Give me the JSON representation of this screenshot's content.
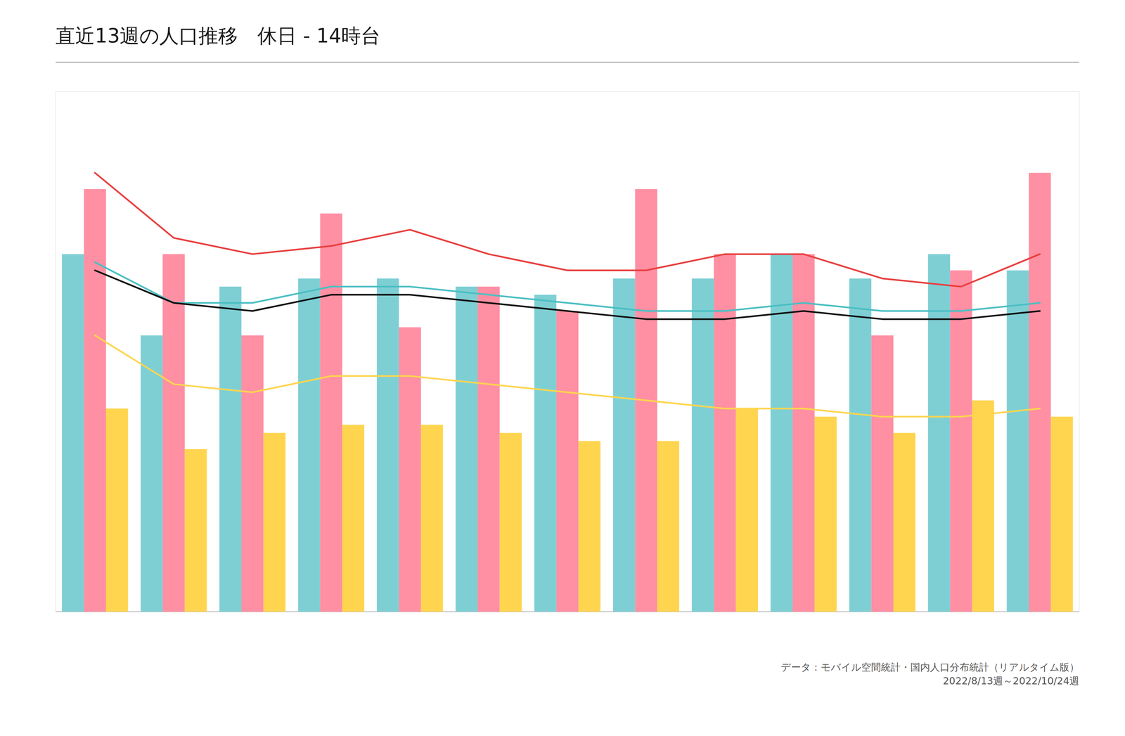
{
  "chart_data": {
    "type": "bar",
    "title": "直近13週の人口推移　休日 - 14時台",
    "annotations": [
      "データ：モバイル空間統計・国内人口分布統計（リアルタイム版）\n2022/8/13週～2022/10/24週"
    ],
    "categories": [
      null,
      null,
      null,
      null,
      null,
      null,
      null,
      null,
      null,
      null,
      null,
      null,
      null
    ],
    "series": [
      {
        "type": "bar",
        "color": "#7ecfd4",
        "values": [
          2200,
          1700,
          2000,
          2050,
          2050,
          2000,
          1950,
          2050,
          2050,
          2200,
          2050,
          2200,
          2100
        ]
      },
      {
        "type": "bar",
        "color": "#ff8fa3",
        "values": [
          2600,
          2200,
          1700,
          2450,
          1750,
          2000,
          1850,
          2600,
          2200,
          2200,
          1700,
          2100,
          2700
        ]
      },
      {
        "type": "bar",
        "color": "#ffd54f",
        "values": [
          1250,
          1000,
          1100,
          1150,
          1150,
          1100,
          1050,
          1050,
          1250,
          1200,
          1100,
          1300,
          1200
        ]
      },
      {
        "type": "line",
        "color": "#e84040",
        "values": [
          2700,
          2300,
          2200,
          2250,
          2350,
          2200,
          2100,
          2100,
          2200,
          2200,
          2050,
          2000,
          2200
        ]
      },
      {
        "type": "line",
        "color": "#4bbfc3",
        "values": [
          2150,
          1900,
          1900,
          2000,
          2000,
          1950,
          1900,
          1850,
          1850,
          1900,
          1850,
          1850,
          1900
        ]
      },
      {
        "type": "line",
        "color": "#111111",
        "values": [
          2100,
          1900,
          1850,
          1950,
          1950,
          1900,
          1850,
          1800,
          1800,
          1850,
          1800,
          1800,
          1850
        ]
      },
      {
        "type": "line",
        "color": "#ffd54f",
        "values": [
          1700,
          1400,
          1350,
          1450,
          1450,
          1400,
          1350,
          1300,
          1250,
          1250,
          1200,
          1200,
          1250
        ]
      }
    ],
    "ylim": [
      0,
      3200
    ],
    "yticks": [],
    "grid": false,
    "tick_labels": false
  }
}
